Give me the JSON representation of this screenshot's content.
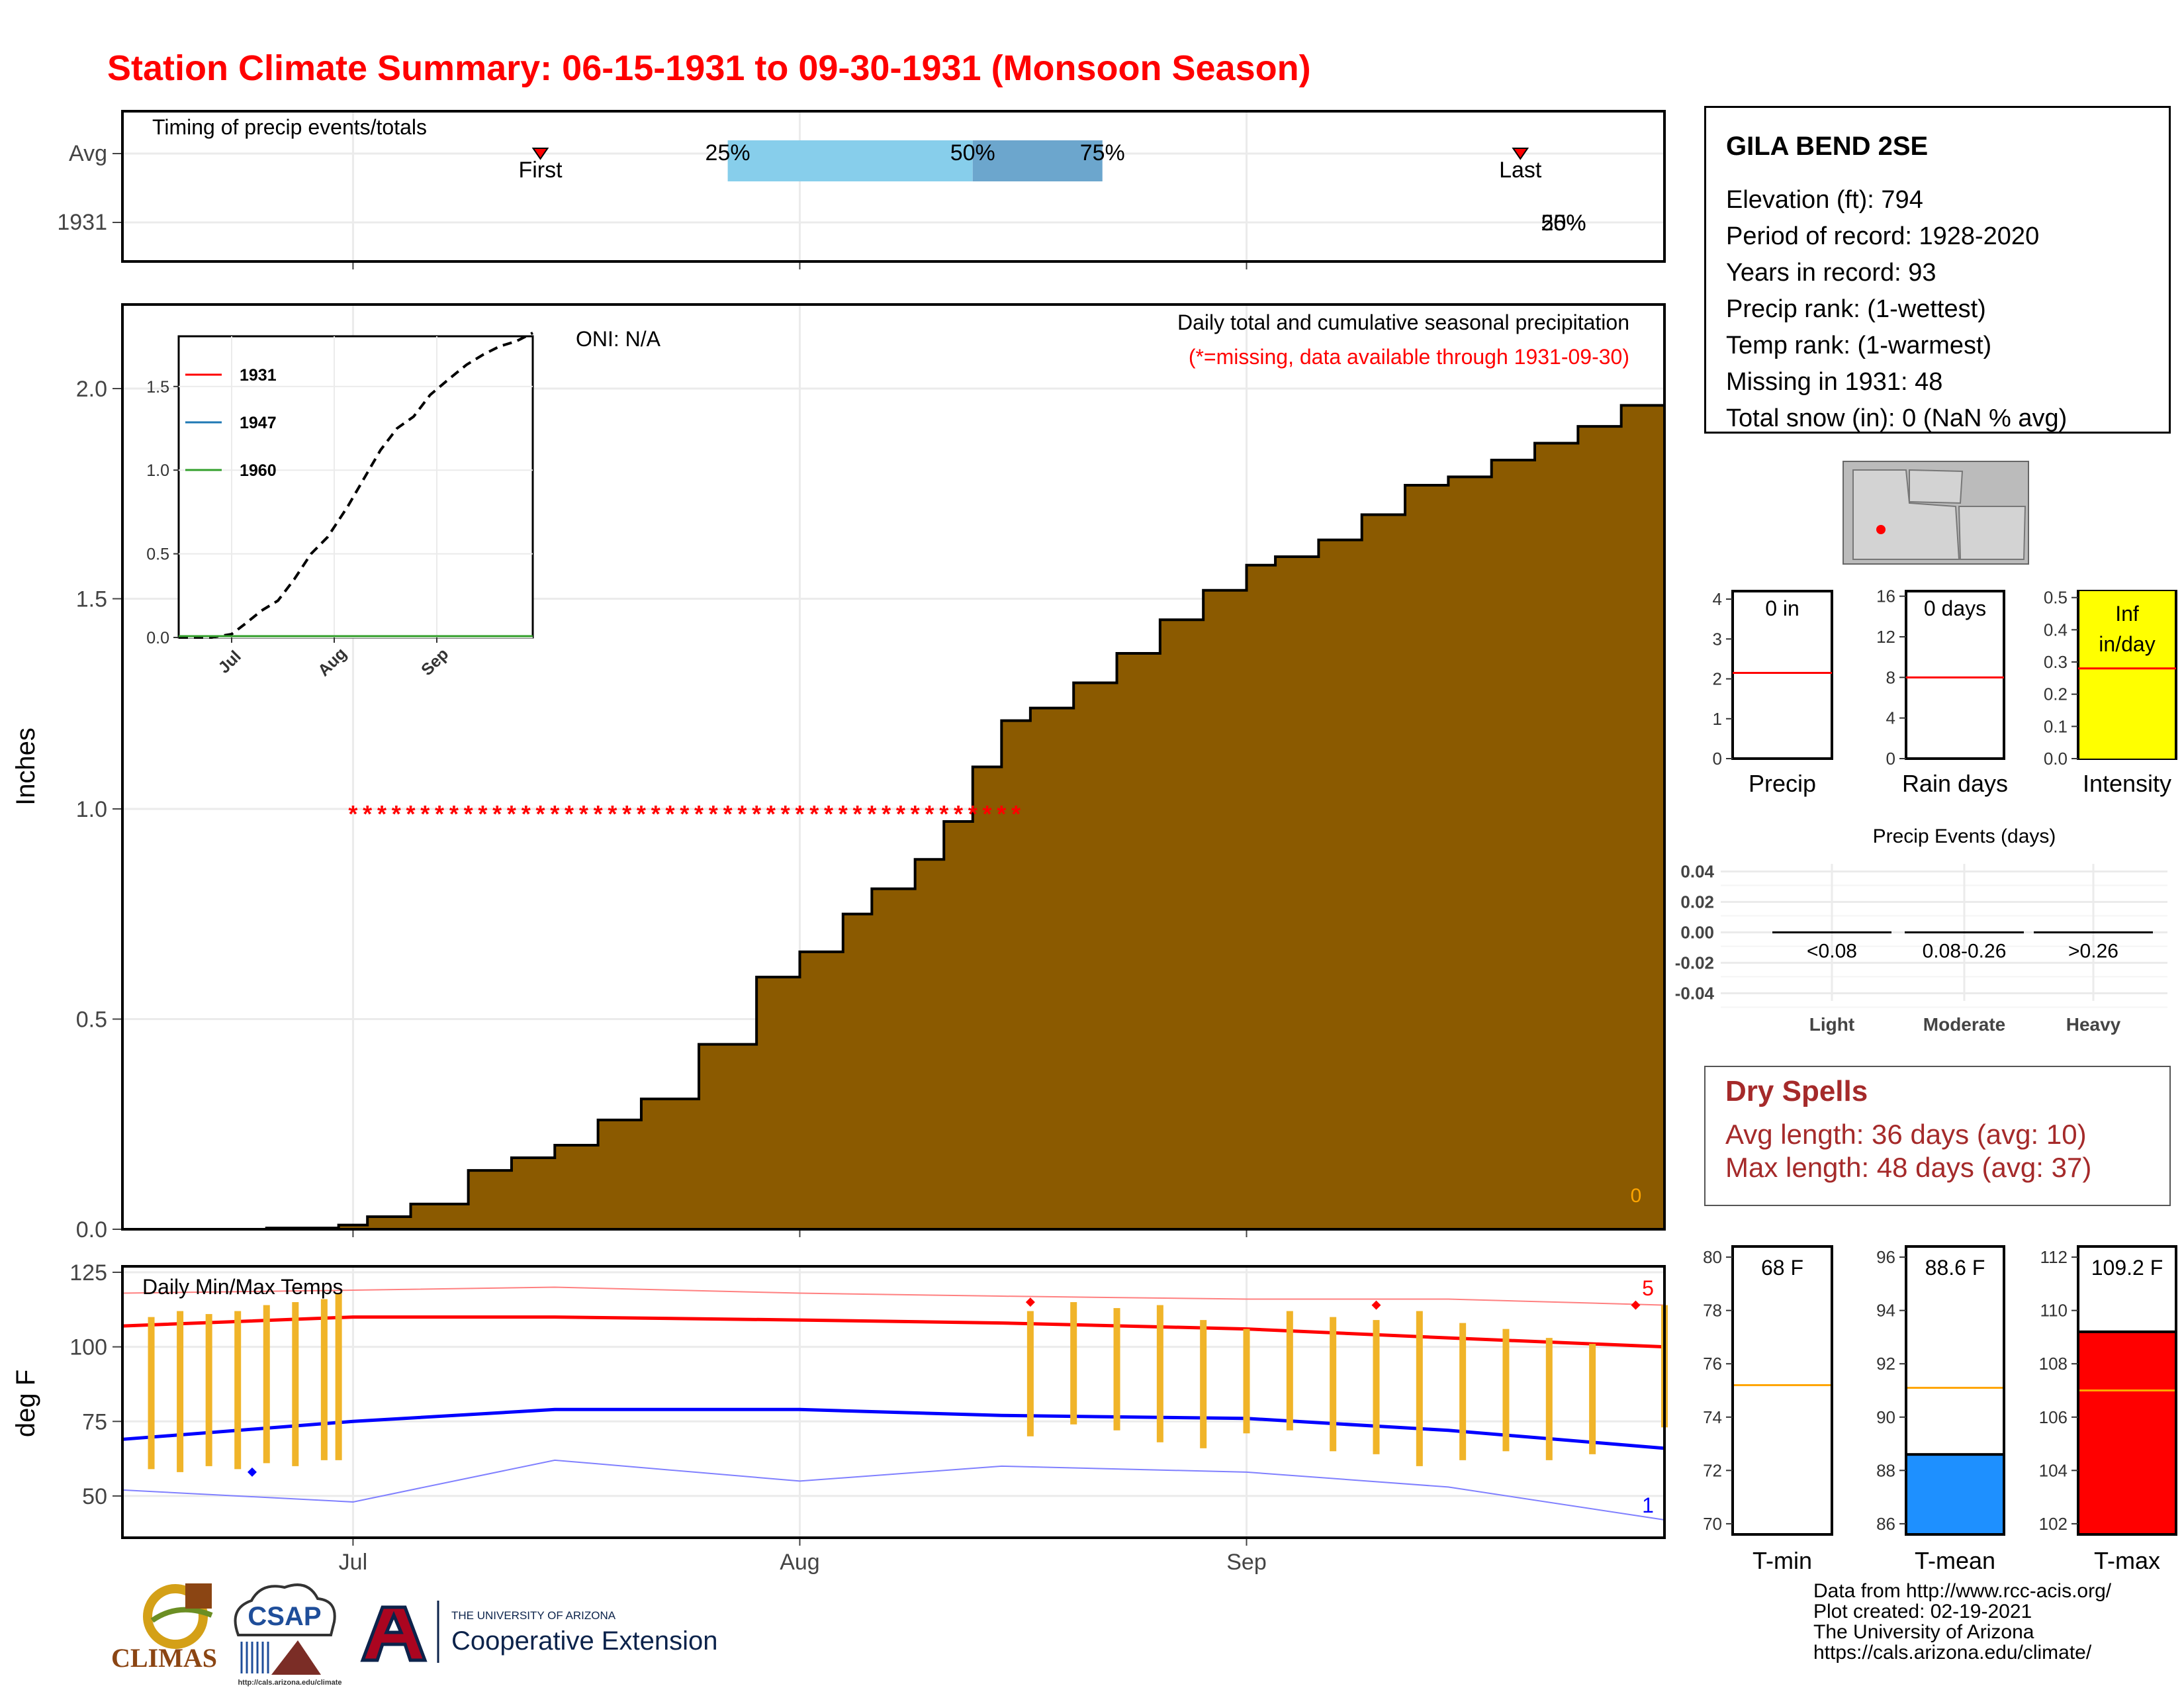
{
  "title": "Station Climate Summary: 06-15-1931 to 09-30-1931 (Monsoon Season)",
  "timing_panel": {
    "heading": "Timing of precip events/totals",
    "row_labels": [
      "Avg",
      "1931"
    ],
    "first_label": "First",
    "last_label": "Last",
    "pct_labels": [
      "25%",
      "50%",
      "75%"
    ],
    "overlap_label_a": "25%",
    "overlap_label_b": "50%",
    "colors": {
      "q1": "#87ceeb",
      "q2": "#6ca6cd",
      "marker": "#ff0000"
    }
  },
  "station": {
    "name": "GILA BEND 2SE",
    "lines": [
      "Elevation (ft): 794",
      "Period of record: 1928-2020",
      "Years in record: 93",
      "Precip rank:  (1-wettest)",
      "Temp rank:  (1-warmest)",
      "Missing in 1931: 48",
      "Total snow (in): 0 (NaN % avg)"
    ]
  },
  "precip_panel": {
    "ylabel": "Inches",
    "oni": "ONI: N/A",
    "heading": "Daily total and cumulative seasonal precipitation",
    "missing_note": "(*=missing, data available through 1931-09-30)",
    "zero_count": "0",
    "fill_color": "#8b5a00"
  },
  "inset": {
    "legend": [
      "1931",
      "1947",
      "1960"
    ],
    "legend_colors": [
      "#ff0000",
      "#1f78b4",
      "#33a02c"
    ],
    "yticks": [
      "0.0",
      "0.5",
      "1.0",
      "1.5"
    ],
    "xticks": [
      "Jul",
      "Aug",
      "Sep"
    ]
  },
  "temp_panel": {
    "ylabel": "deg F",
    "heading": "Daily Min/Max Temps",
    "high_count": "5",
    "low_count": "1"
  },
  "x_axis_months": [
    "Jul",
    "Aug",
    "Sep"
  ],
  "mini_bars": [
    {
      "label": "Precip",
      "value_label": "0 in",
      "yticks": [
        "0",
        "1",
        "2",
        "3",
        "4"
      ],
      "avg": 2.15,
      "value": 0,
      "ymin": 0,
      "ymax": 4.2,
      "bg": "#ffffff",
      "fill": "#ffffff",
      "line": "#ff0000"
    },
    {
      "label": "Rain days",
      "value_label": "0 days",
      "yticks": [
        "0",
        "4",
        "8",
        "12",
        "16"
      ],
      "avg": 8,
      "value": 0,
      "ymin": 0,
      "ymax": 16.5,
      "bg": "#ffffff",
      "fill": "#ffffff",
      "line": "#ff0000"
    },
    {
      "label": "Intensity",
      "value_label": "Inf in/day",
      "yticks": [
        "0.0",
        "0.1",
        "0.2",
        "0.3",
        "0.4",
        "0.5"
      ],
      "avg": 0.28,
      "value": 0.52,
      "ymin": 0,
      "ymax": 0.52,
      "bg": "#ffff00",
      "fill": "#ffff00",
      "line": "#ff0000"
    }
  ],
  "precip_events": {
    "title": "Precip Events (days)",
    "yticks": [
      "0.04",
      "0.02",
      "0.00",
      "-0.02",
      "-0.04"
    ],
    "bins": [
      "<0.08",
      "0.08-0.26",
      ">0.26"
    ],
    "categories": [
      "Light",
      "Moderate",
      "Heavy"
    ]
  },
  "dry_spells": {
    "title": "Dry Spells",
    "avg_line": "Avg length: 36 days (avg: 10)",
    "max_line": "Max length: 48 days (avg: 37)",
    "color": "#a52a2a"
  },
  "temp_bars": [
    {
      "label": "T-min",
      "value_label": "68 F",
      "yticks": [
        "70",
        "72",
        "74",
        "76",
        "78",
        "80"
      ],
      "ymin": 69.6,
      "ymax": 80.4,
      "avg": 75.2,
      "value": 68,
      "fill": "#ffffff"
    },
    {
      "label": "T-mean",
      "value_label": "88.6 F",
      "yticks": [
        "86",
        "88",
        "90",
        "92",
        "94",
        "96"
      ],
      "ymin": 85.6,
      "ymax": 96.4,
      "avg": 91.1,
      "value": 88.6,
      "fill": "#1e90ff"
    },
    {
      "label": "T-max",
      "value_label": "109.2 F",
      "yticks": [
        "102",
        "104",
        "106",
        "108",
        "110",
        "112"
      ],
      "ymin": 101.6,
      "ymax": 112.4,
      "avg": 107,
      "value": 109.2,
      "fill": "#ff0000"
    }
  ],
  "credits": [
    "Data from http://www.rcc-acis.org/",
    "Plot created: 02-19-2021",
    "The University of Arizona",
    "https://cals.arizona.edu/climate/"
  ],
  "logos": {
    "climas": "CLIMAS",
    "csap": "CSAP",
    "csap_url": "http://cals.arizona.edu/climate",
    "ua_small": "THE UNIVERSITY OF ARIZONA",
    "ua_big": "Cooperative Extension"
  },
  "chart_data": [
    {
      "type": "area",
      "title": "Daily total and cumulative seasonal precipitation",
      "ylabel": "Inches",
      "ylim": [
        0,
        2.2
      ],
      "yticks": [
        "0.0",
        "0.5",
        "1.0",
        "1.5",
        "2.0"
      ],
      "x_dates": [
        "1931-06-15",
        "1931-06-20",
        "1931-06-25",
        "1931-06-30",
        "1931-07-02",
        "1931-07-05",
        "1931-07-09",
        "1931-07-12",
        "1931-07-15",
        "1931-07-18",
        "1931-07-21",
        "1931-07-25",
        "1931-07-29",
        "1931-08-01",
        "1931-08-04",
        "1931-08-06",
        "1931-08-09",
        "1931-08-11",
        "1931-08-13",
        "1931-08-15",
        "1931-08-17",
        "1931-08-20",
        "1931-08-23",
        "1931-08-26",
        "1931-08-29",
        "1931-09-01",
        "1931-09-03",
        "1931-09-06",
        "1931-09-09",
        "1931-09-12",
        "1931-09-15",
        "1931-09-18",
        "1931-09-21",
        "1931-09-24",
        "1931-09-27",
        "1931-09-30"
      ],
      "values": [
        0.0,
        0.0,
        0.003,
        0.01,
        0.03,
        0.06,
        0.14,
        0.17,
        0.2,
        0.26,
        0.31,
        0.44,
        0.6,
        0.66,
        0.75,
        0.81,
        0.88,
        0.97,
        1.1,
        1.21,
        1.24,
        1.3,
        1.37,
        1.45,
        1.52,
        1.58,
        1.6,
        1.64,
        1.7,
        1.77,
        1.79,
        1.83,
        1.87,
        1.91,
        1.96,
        1.98
      ],
      "missing_marker_y": 1.0,
      "missing_range": [
        "1931-07-01",
        "1931-08-16"
      ]
    },
    {
      "type": "line",
      "title": "",
      "xticks": [
        "Jul",
        "Aug",
        "Sep"
      ],
      "ylim": [
        0,
        1.8
      ],
      "series": [
        {
          "name": "",
          "x_dates": [
            "1931-06-15",
            "1931-06-25",
            "1931-07-01",
            "1931-07-05",
            "1931-07-10",
            "1931-07-15",
            "1931-07-20",
            "1931-07-25",
            "1931-07-30",
            "1931-08-05",
            "1931-08-10",
            "1931-08-15",
            "1931-08-20",
            "1931-08-25",
            "1931-08-30",
            "1931-09-05",
            "1931-09-10",
            "1931-09-15",
            "1931-09-20",
            "1931-09-25",
            "1931-09-30"
          ],
          "values": [
            0.0,
            0.0,
            0.02,
            0.08,
            0.16,
            0.22,
            0.35,
            0.5,
            0.6,
            0.78,
            0.95,
            1.12,
            1.25,
            1.32,
            1.45,
            1.55,
            1.63,
            1.69,
            1.74,
            1.77,
            1.82
          ]
        },
        {
          "name": "1931",
          "values": []
        },
        {
          "name": "1947",
          "values": []
        },
        {
          "name": "1960",
          "values": []
        }
      ]
    },
    {
      "type": "line",
      "title": "Daily Min/Max Temps",
      "ylabel": "deg F",
      "ylim": [
        36,
        127
      ],
      "yticks": [
        "50",
        "75",
        "100",
        "125"
      ],
      "series": [
        {
          "name": "avg max",
          "x_dates": [
            "1931-06-15",
            "1931-07-01",
            "1931-07-15",
            "1931-08-01",
            "1931-08-15",
            "1931-09-01",
            "1931-09-15",
            "1931-09-30"
          ],
          "values": [
            107,
            110,
            110,
            109,
            108,
            106,
            103,
            100
          ]
        },
        {
          "name": "avg min",
          "x_dates": [
            "1931-06-15",
            "1931-07-01",
            "1931-07-15",
            "1931-08-01",
            "1931-08-15",
            "1931-09-01",
            "1931-09-15",
            "1931-09-30"
          ],
          "values": [
            69,
            75,
            79,
            79,
            77,
            76,
            72,
            66
          ]
        },
        {
          "name": "record max",
          "x_dates": [
            "1931-06-15",
            "1931-07-01",
            "1931-07-15",
            "1931-08-01",
            "1931-08-15",
            "1931-09-01",
            "1931-09-15",
            "1931-09-30"
          ],
          "values": [
            118,
            119,
            120,
            118,
            117,
            116,
            116,
            114
          ]
        },
        {
          "name": "record min",
          "x_dates": [
            "1931-06-15",
            "1931-07-01",
            "1931-07-15",
            "1931-08-01",
            "1931-08-15",
            "1931-09-01",
            "1931-09-15",
            "1931-09-30"
          ],
          "values": [
            52,
            48,
            62,
            55,
            60,
            58,
            53,
            42
          ]
        }
      ],
      "daily_ranges": {
        "x_dates": [
          "1931-06-17",
          "1931-06-19",
          "1931-06-21",
          "1931-06-23",
          "1931-06-25",
          "1931-06-27",
          "1931-06-29",
          "1931-06-30",
          "1931-08-17",
          "1931-08-20",
          "1931-08-23",
          "1931-08-26",
          "1931-08-29",
          "1931-09-01",
          "1931-09-04",
          "1931-09-07",
          "1931-09-10",
          "1931-09-13",
          "1931-09-16",
          "1931-09-19",
          "1931-09-22",
          "1931-09-25",
          "1931-09-30"
        ],
        "max": [
          110,
          112,
          111,
          112,
          114,
          115,
          116,
          118,
          112,
          115,
          113,
          114,
          109,
          106,
          112,
          110,
          109,
          112,
          108,
          106,
          103,
          101,
          114
        ],
        "min": [
          59,
          58,
          60,
          59,
          61,
          60,
          62,
          62,
          70,
          74,
          72,
          68,
          66,
          71,
          72,
          65,
          64,
          60,
          62,
          65,
          62,
          64,
          73
        ]
      }
    },
    {
      "type": "bar",
      "title": "Precip Events (days)",
      "categories": [
        "Light",
        "Moderate",
        "Heavy"
      ],
      "values": [
        0,
        0,
        0
      ],
      "ylim": [
        -0.04,
        0.04
      ]
    }
  ]
}
